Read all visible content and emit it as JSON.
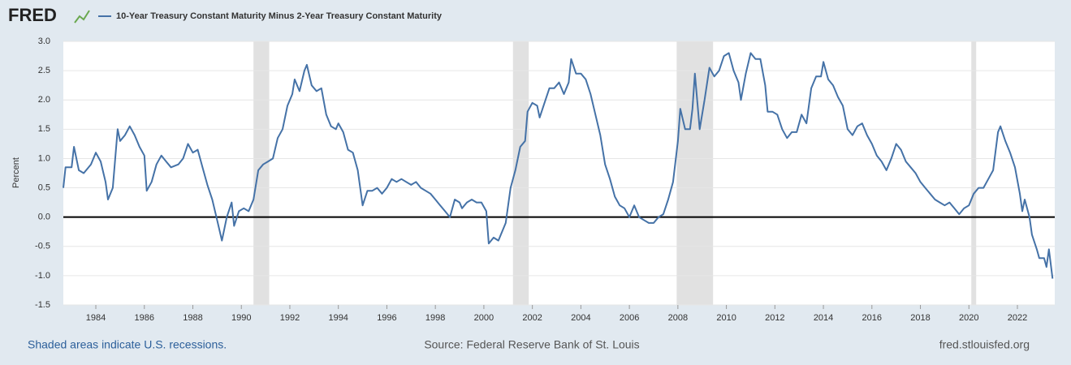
{
  "brand": "FRED",
  "footer": {
    "note": "Shaded areas indicate U.S. recessions.",
    "source": "Source: Federal Reserve Bank of St. Louis",
    "site": "fred.stlouisfed.org"
  },
  "chart_data": {
    "type": "line",
    "ylabel": "Percent",
    "xlim": [
      1982.66,
      2023.54
    ],
    "ylim": [
      -1.5,
      3.0
    ],
    "xticks": [
      1984,
      1986,
      1988,
      1990,
      1992,
      1994,
      1996,
      1998,
      2000,
      2002,
      2004,
      2006,
      2008,
      2010,
      2012,
      2014,
      2016,
      2018,
      2020,
      2022
    ],
    "yticks": [
      -1.5,
      {
        "value": -1,
        "label": "-1.0"
      },
      -0.5,
      {
        "value": 0,
        "label": "0.0"
      },
      0.5,
      {
        "value": 1,
        "label": "1.0"
      },
      1.5,
      {
        "value": 2,
        "label": "2.0"
      },
      2.5,
      {
        "value": 3,
        "label": "3.0"
      }
    ],
    "grid": true,
    "zero_line": true,
    "recessions": [
      [
        1990.5,
        1991.15
      ],
      [
        2001.2,
        2001.85
      ],
      [
        2007.95,
        2009.45
      ],
      [
        2020.1,
        2020.3
      ]
    ],
    "recession_color": "#e1e1e1",
    "x": [
      1982.66,
      1982.75,
      1983.0,
      1983.1,
      1983.3,
      1983.5,
      1983.8,
      1984.0,
      1984.2,
      1984.4,
      1984.5,
      1984.7,
      1984.9,
      1985.0,
      1985.2,
      1985.4,
      1985.6,
      1985.8,
      1986.0,
      1986.1,
      1986.3,
      1986.5,
      1986.7,
      1986.9,
      1987.1,
      1987.4,
      1987.6,
      1987.8,
      1988.0,
      1988.2,
      1988.4,
      1988.6,
      1988.8,
      1989.0,
      1989.2,
      1989.4,
      1989.6,
      1989.7,
      1989.9,
      1990.1,
      1990.3,
      1990.5,
      1990.7,
      1990.9,
      1991.1,
      1991.3,
      1991.5,
      1991.7,
      1991.9,
      1992.1,
      1992.2,
      1992.4,
      1992.6,
      1992.7,
      1992.9,
      1993.1,
      1993.3,
      1993.5,
      1993.7,
      1993.9,
      1994.0,
      1994.2,
      1994.4,
      1994.6,
      1994.8,
      1995.0,
      1995.2,
      1995.4,
      1995.6,
      1995.8,
      1996.0,
      1996.2,
      1996.4,
      1996.6,
      1996.8,
      1997.0,
      1997.2,
      1997.4,
      1997.6,
      1997.8,
      1998.0,
      1998.2,
      1998.4,
      1998.6,
      1998.8,
      1999.0,
      1999.1,
      1999.3,
      1999.5,
      1999.7,
      1999.9,
      2000.1,
      2000.2,
      2000.4,
      2000.6,
      2000.8,
      2000.9,
      2001.1,
      2001.3,
      2001.5,
      2001.7,
      2001.8,
      2002.0,
      2002.2,
      2002.3,
      2002.5,
      2002.7,
      2002.9,
      2003.1,
      2003.3,
      2003.5,
      2003.6,
      2003.8,
      2004.0,
      2004.2,
      2004.4,
      2004.6,
      2004.8,
      2005.0,
      2005.2,
      2005.4,
      2005.6,
      2005.8,
      2006.0,
      2006.2,
      2006.4,
      2006.6,
      2006.8,
      2007.0,
      2007.2,
      2007.4,
      2007.6,
      2007.8,
      2008.0,
      2008.1,
      2008.3,
      2008.5,
      2008.6,
      2008.7,
      2008.9,
      2009.1,
      2009.3,
      2009.5,
      2009.7,
      2009.9,
      2010.1,
      2010.3,
      2010.5,
      2010.6,
      2010.8,
      2011.0,
      2011.2,
      2011.4,
      2011.6,
      2011.7,
      2011.9,
      2012.1,
      2012.3,
      2012.5,
      2012.7,
      2012.9,
      2013.1,
      2013.3,
      2013.5,
      2013.7,
      2013.9,
      2014.0,
      2014.2,
      2014.4,
      2014.6,
      2014.8,
      2015.0,
      2015.2,
      2015.4,
      2015.6,
      2015.8,
      2016.0,
      2016.2,
      2016.4,
      2016.6,
      2016.8,
      2017.0,
      2017.2,
      2017.4,
      2017.6,
      2017.8,
      2018.0,
      2018.2,
      2018.4,
      2018.6,
      2018.8,
      2019.0,
      2019.2,
      2019.4,
      2019.6,
      2019.8,
      2020.0,
      2020.2,
      2020.4,
      2020.6,
      2020.8,
      2021.0,
      2021.2,
      2021.3,
      2021.5,
      2021.7,
      2021.9,
      2022.1,
      2022.2,
      2022.3,
      2022.5,
      2022.6,
      2022.8,
      2022.9,
      2023.1,
      2023.2,
      2023.3,
      2023.45
    ],
    "series": [
      {
        "name": "10-Year Treasury Constant Maturity Minus 2-Year Treasury Constant Maturity",
        "color": "#4572a7",
        "values": [
          0.5,
          0.85,
          0.85,
          1.2,
          0.8,
          0.75,
          0.9,
          1.1,
          0.95,
          0.6,
          0.3,
          0.5,
          1.5,
          1.3,
          1.4,
          1.55,
          1.4,
          1.2,
          1.05,
          0.45,
          0.6,
          0.9,
          1.05,
          0.95,
          0.85,
          0.9,
          1.0,
          1.25,
          1.1,
          1.15,
          0.85,
          0.55,
          0.3,
          -0.05,
          -0.4,
          0.0,
          0.25,
          -0.15,
          0.1,
          0.15,
          0.1,
          0.3,
          0.8,
          0.9,
          0.95,
          1.0,
          1.35,
          1.5,
          1.9,
          2.1,
          2.35,
          2.15,
          2.5,
          2.6,
          2.25,
          2.15,
          2.2,
          1.75,
          1.55,
          1.5,
          1.6,
          1.45,
          1.15,
          1.1,
          0.8,
          0.2,
          0.45,
          0.45,
          0.5,
          0.4,
          0.5,
          0.65,
          0.6,
          0.65,
          0.6,
          0.55,
          0.6,
          0.5,
          0.45,
          0.4,
          0.3,
          0.2,
          0.1,
          0.0,
          0.3,
          0.25,
          0.15,
          0.25,
          0.3,
          0.25,
          0.25,
          0.1,
          -0.45,
          -0.35,
          -0.4,
          -0.2,
          -0.1,
          0.5,
          0.8,
          1.2,
          1.3,
          1.8,
          1.95,
          1.9,
          1.7,
          1.95,
          2.2,
          2.2,
          2.3,
          2.1,
          2.3,
          2.7,
          2.45,
          2.45,
          2.35,
          2.1,
          1.75,
          1.4,
          0.9,
          0.65,
          0.35,
          0.2,
          0.15,
          0.0,
          0.2,
          0.0,
          -0.05,
          -0.1,
          -0.1,
          0.0,
          0.05,
          0.3,
          0.6,
          1.3,
          1.85,
          1.5,
          1.5,
          1.85,
          2.45,
          1.5,
          2.0,
          2.55,
          2.4,
          2.5,
          2.75,
          2.8,
          2.5,
          2.3,
          2.0,
          2.45,
          2.8,
          2.7,
          2.7,
          2.25,
          1.8,
          1.8,
          1.75,
          1.5,
          1.35,
          1.45,
          1.45,
          1.75,
          1.6,
          2.2,
          2.4,
          2.4,
          2.65,
          2.35,
          2.25,
          2.05,
          1.9,
          1.5,
          1.4,
          1.55,
          1.6,
          1.4,
          1.25,
          1.05,
          0.95,
          0.8,
          1.0,
          1.25,
          1.15,
          0.95,
          0.85,
          0.75,
          0.6,
          0.5,
          0.4,
          0.3,
          0.25,
          0.2,
          0.25,
          0.15,
          0.05,
          0.15,
          0.2,
          0.4,
          0.5,
          0.5,
          0.65,
          0.8,
          1.45,
          1.55,
          1.3,
          1.1,
          0.85,
          0.4,
          0.1,
          0.3,
          0.0,
          -0.3,
          -0.55,
          -0.7,
          -0.7,
          -0.85,
          -0.55,
          -1.05
        ]
      }
    ]
  }
}
